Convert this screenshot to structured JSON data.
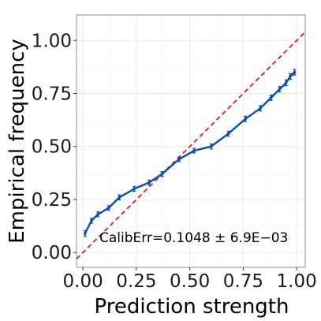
{
  "chart_data": {
    "type": "line",
    "xlabel": "Prediction strength",
    "ylabel": "Empirical frequency",
    "xlim": [
      -0.03,
      1.04
    ],
    "ylim": [
      -0.07,
      1.12
    ],
    "x_ticks": [
      0.0,
      0.25,
      0.5,
      0.75,
      1.0
    ],
    "x_tick_labels": [
      "0.00",
      "0.25",
      "0.50",
      "0.75",
      "1.00"
    ],
    "y_ticks": [
      0.0,
      0.25,
      0.5,
      0.75,
      1.0
    ],
    "y_tick_labels": [
      "0.00",
      "0.25",
      "0.50",
      "0.75",
      "1.00"
    ],
    "grid": true,
    "annotation": "CalibErr=0.1048 ± 6.9E−03",
    "series": [
      {
        "color": "#0a4fa8",
        "x": [
          0.01,
          0.04,
          0.07,
          0.12,
          0.17,
          0.24,
          0.31,
          0.37,
          0.45,
          0.52,
          0.6,
          0.68,
          0.76,
          0.83,
          0.88,
          0.92,
          0.95,
          0.97,
          0.99
        ],
        "y": [
          0.09,
          0.15,
          0.18,
          0.21,
          0.26,
          0.3,
          0.33,
          0.37,
          0.44,
          0.48,
          0.5,
          0.56,
          0.63,
          0.68,
          0.73,
          0.77,
          0.8,
          0.83,
          0.85
        ],
        "errors": [
          0.008,
          0.006,
          0.006,
          0.005,
          0.006,
          0.006,
          0.006,
          0.006,
          0.005,
          0.005,
          0.006,
          0.006,
          0.007,
          0.007,
          0.007,
          0.007,
          0.008,
          0.008,
          0.008
        ]
      }
    ],
    "reference_line": {
      "color": "#e41a1c",
      "style": "dashed",
      "points": [
        [
          -0.03,
          -0.03
        ],
        [
          1.04,
          1.04
        ]
      ]
    }
  }
}
